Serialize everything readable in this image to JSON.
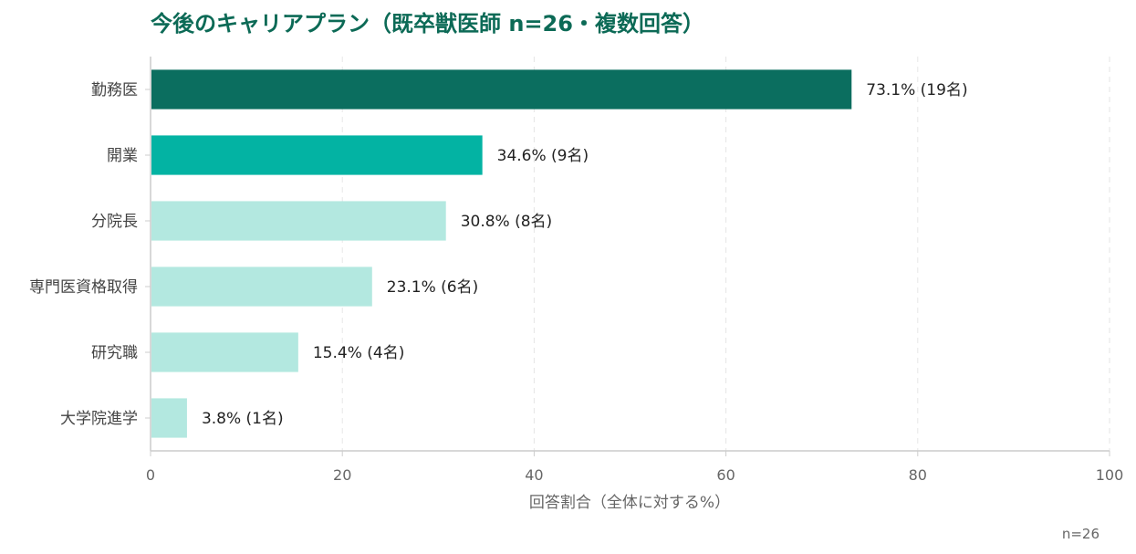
{
  "colors": {
    "title": "#0c6a56",
    "axis": "#cccccc",
    "grid": "#e6e6e6"
  },
  "chart_data": {
    "type": "bar",
    "orientation": "horizontal",
    "title": "今後のキャリアプラン（既卒獣医師 n=26・複数回答）",
    "xlabel": "回答割合（全体に対する%）",
    "ylabel": "",
    "xlim": [
      0,
      100
    ],
    "xticks": [
      "0",
      "20",
      "40",
      "60",
      "80",
      "100"
    ],
    "grid": "vertical-dashed",
    "categories": [
      "勤務医",
      "開業",
      "分院長",
      "専門医資格取得",
      "研究職",
      "大学院進学"
    ],
    "values": [
      73.1,
      34.6,
      30.8,
      23.1,
      15.4,
      3.8
    ],
    "data_labels": [
      "73.1% (19名)",
      "34.6% (9名)",
      "30.8% (8名)",
      "23.1% (6名)",
      "15.4% (4名)",
      "3.8% (1名)"
    ],
    "bar_colors": [
      "#0b6e5f",
      "#03b3a3",
      "#b3e8e0",
      "#b3e8e0",
      "#b3e8e0",
      "#b3e8e0"
    ],
    "note": "n=26"
  }
}
